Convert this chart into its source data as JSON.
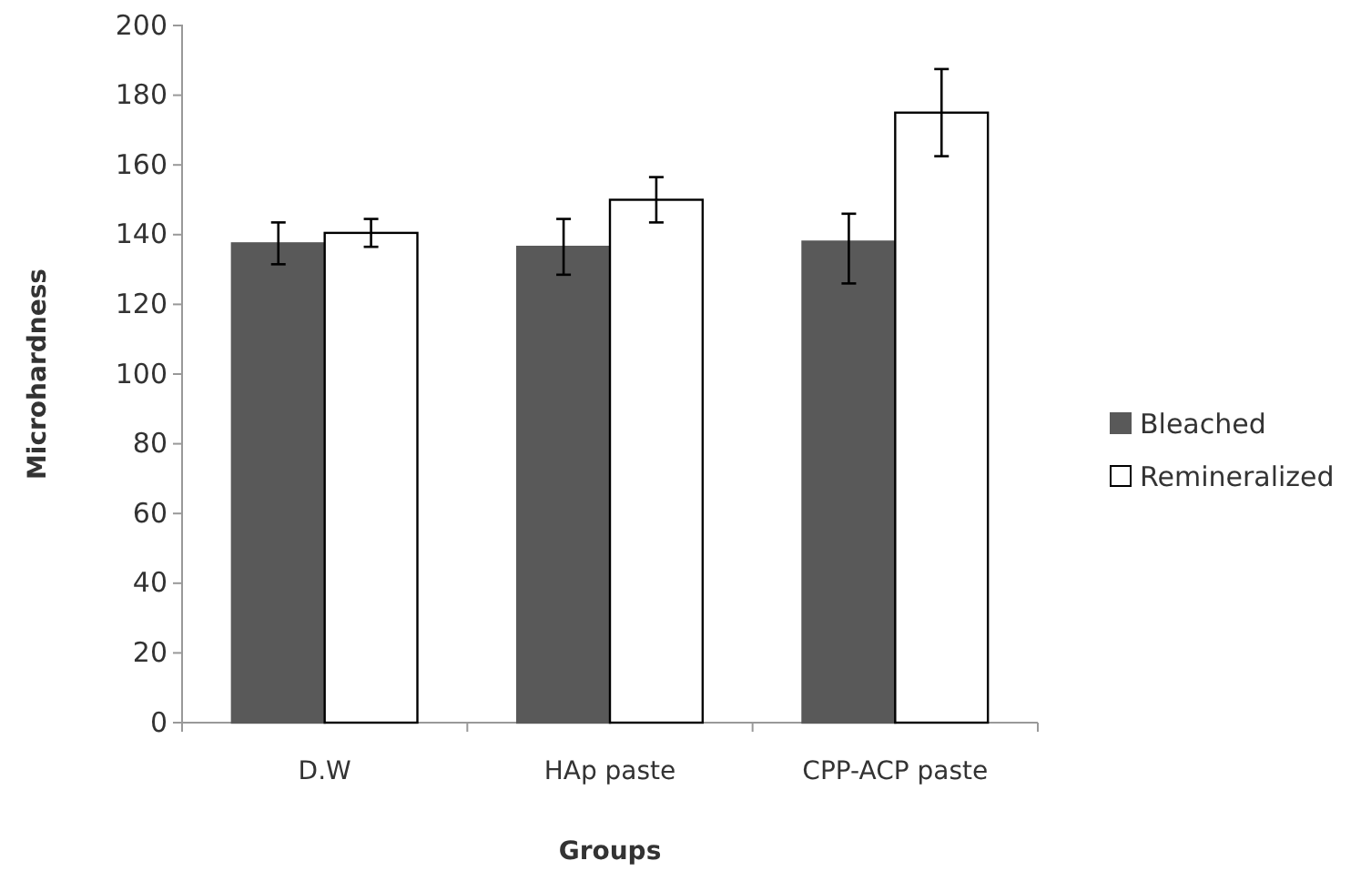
{
  "chart_data": {
    "type": "bar",
    "xlabel": "Groups",
    "ylabel": "Microhardness",
    "categories": [
      "D.W",
      "HAp paste",
      "CPP-ACP paste"
    ],
    "series": [
      {
        "name": "Bleached",
        "color": "#595959",
        "values": [
          137.5,
          136.5,
          138
        ],
        "errors": [
          6,
          8,
          [
            126,
            146
          ]
        ]
      },
      {
        "name": "Remineralized",
        "color": "#ffffff",
        "values": [
          140.5,
          150,
          175
        ],
        "errors": [
          4,
          6.5,
          12.5
        ]
      }
    ],
    "ylim": [
      0,
      200
    ],
    "yticks": [
      0,
      20,
      40,
      60,
      80,
      100,
      120,
      140,
      160,
      180,
      200
    ],
    "grid": false,
    "legend": "right"
  }
}
